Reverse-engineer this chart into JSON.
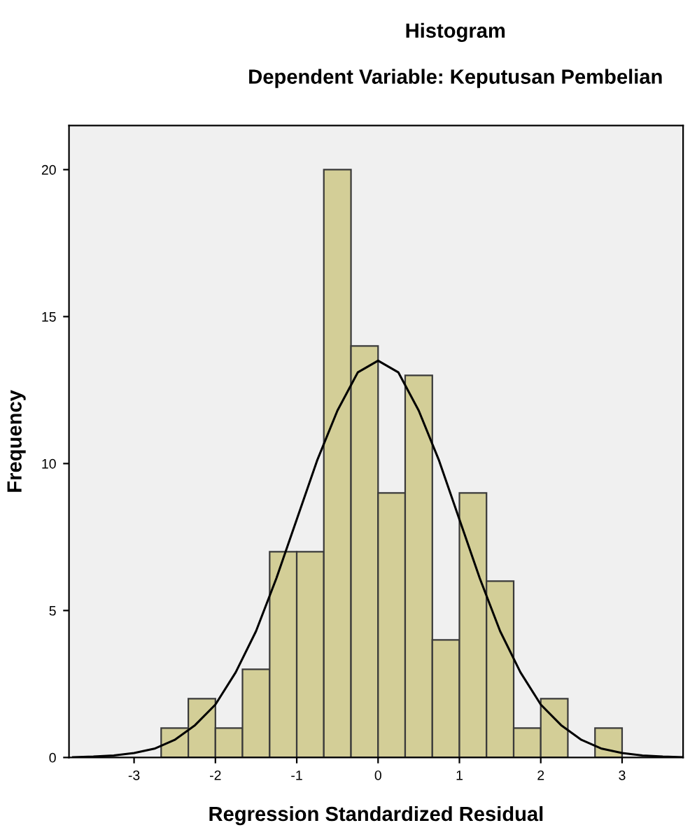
{
  "chart_data": {
    "type": "histogram",
    "title": "Histogram",
    "subtitle": "Dependent Variable: Keputusan Pembelian",
    "xlabel": "Regression Standardized Residual",
    "ylabel": "Frequency",
    "bins": [
      -2.667,
      -2.333,
      -2.0,
      -1.667,
      -1.333,
      -1.0,
      -0.667,
      -0.333,
      0.0,
      0.333,
      0.667,
      1.0,
      1.333,
      1.667,
      2.0,
      2.333,
      2.667,
      3.0
    ],
    "values": [
      1,
      2,
      1,
      3,
      7,
      7,
      20,
      14,
      9,
      13,
      4,
      9,
      6,
      1,
      2,
      0,
      1
    ],
    "color": "#d3ce97",
    "series": [
      {
        "type": "line",
        "color": "#000000",
        "x": [
          -3.75,
          -3.5,
          -3.25,
          -3.0,
          -2.75,
          -2.5,
          -2.25,
          -2.0,
          -1.75,
          -1.5,
          -1.25,
          -1.0,
          -0.75,
          -0.5,
          -0.25,
          0.0,
          0.25,
          0.5,
          0.75,
          1.0,
          1.25,
          1.5,
          1.75,
          2.0,
          2.25,
          2.5,
          2.75,
          3.0,
          3.25,
          3.5,
          3.75
        ],
        "values": [
          0.01,
          0.03,
          0.07,
          0.15,
          0.3,
          0.6,
          1.1,
          1.8,
          2.9,
          4.3,
          6.1,
          8.1,
          10.1,
          11.8,
          13.1,
          13.5,
          13.1,
          11.8,
          10.1,
          8.1,
          6.1,
          4.3,
          2.9,
          1.8,
          1.1,
          0.6,
          0.3,
          0.15,
          0.07,
          0.03,
          0.01
        ]
      }
    ],
    "xlim": [
      -3.8,
      3.75
    ],
    "ylim": [
      0,
      21.5
    ],
    "xticks": [
      -3,
      -2,
      -1,
      0,
      1,
      2,
      3
    ],
    "yticks": [
      0,
      5,
      10,
      15,
      20
    ],
    "grid": false,
    "legend": false
  }
}
